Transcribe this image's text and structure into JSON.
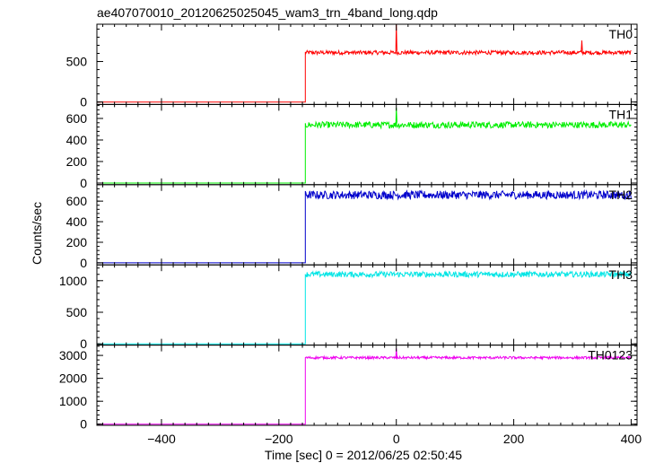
{
  "title": "ae407070010_20120625025045_wam3_trn_4band_long.qdp",
  "chart_data": {
    "type": "line",
    "title": "ae407070010_20120625025045_wam3_trn_4band_long.qdp",
    "xlabel": "Time [sec] 0 = 2012/06/25 02:50:45",
    "ylabel": "Counts/sec",
    "xlim": [
      -510,
      410
    ],
    "x_ticks": [
      -400,
      -200,
      0,
      200,
      400
    ],
    "x_tick_labels": [
      "−400",
      "−200",
      "0",
      "200",
      "400"
    ],
    "step_time": -155,
    "series": [
      {
        "name": "TH0",
        "color": "#ff0000",
        "ylim": [
          -30,
          960
        ],
        "ticks": [
          0,
          500
        ],
        "tick_labels": [
          "0",
          "500"
        ],
        "pre_level": 0,
        "post_level": 610,
        "noise": 25,
        "spikes": [
          {
            "x": 0,
            "y": 960
          },
          {
            "x": 316,
            "y": 760
          }
        ]
      },
      {
        "name": "TH1",
        "color": "#00ee00",
        "ylim": [
          -15,
          730
        ],
        "ticks": [
          0,
          200,
          400,
          600
        ],
        "tick_labels": [
          "0",
          "200",
          "400",
          "600"
        ],
        "pre_level": 0,
        "post_level": 540,
        "noise": 30,
        "spikes": [
          {
            "x": 0,
            "y": 700
          }
        ]
      },
      {
        "name": "TH2",
        "color": "#0000cc",
        "ylim": [
          -20,
          760
        ],
        "ticks": [
          0,
          200,
          400,
          600
        ],
        "tick_labels": [
          "0",
          "200",
          "400",
          "600"
        ],
        "pre_level": 0,
        "post_level": 660,
        "noise": 40,
        "spikes": []
      },
      {
        "name": "TH3",
        "color": "#00e5e5",
        "ylim": [
          -20,
          1250
        ],
        "ticks": [
          0,
          500,
          1000
        ],
        "tick_labels": [
          "0",
          "500",
          "1000"
        ],
        "pre_level": 0,
        "post_level": 1100,
        "noise": 45,
        "spikes": []
      },
      {
        "name": "TH0123",
        "color": "#ee00ee",
        "ylim": [
          -50,
          3450
        ],
        "ticks": [
          0,
          1000,
          2000,
          3000
        ],
        "tick_labels": [
          "0",
          "1000",
          "2000",
          "3000"
        ],
        "pre_level": 0,
        "post_level": 2900,
        "noise": 55,
        "spikes": [
          {
            "x": 0,
            "y": 3300
          }
        ]
      }
    ]
  }
}
